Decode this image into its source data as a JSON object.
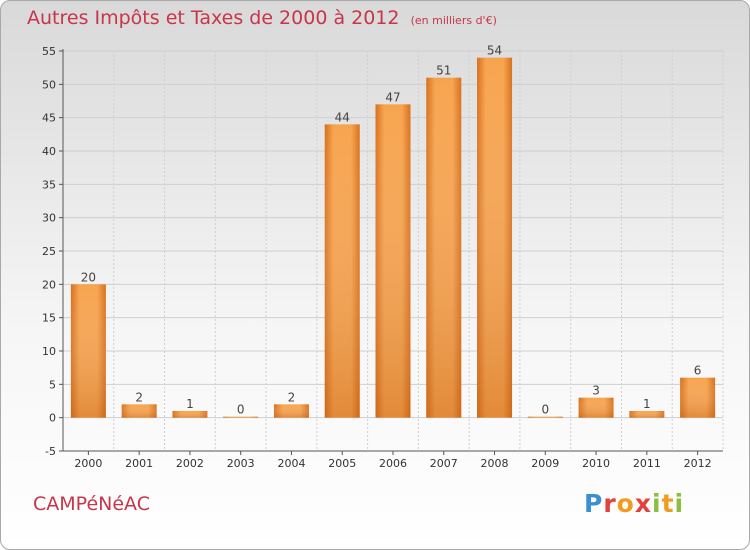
{
  "header": {
    "title": "Autres Impôts et Taxes de 2000 à 2012",
    "subtitle": "(en milliers d'€)"
  },
  "footer": {
    "commune": "CAMPéNéAC",
    "logo": "Proxiti"
  },
  "colors": {
    "title": "#c8354a",
    "bar_light": "#f7a44f",
    "bar_dark": "#d8701b",
    "grid": "#cfcfcf"
  },
  "chart_data": {
    "type": "bar",
    "title": "Autres Impôts et Taxes de 2000 à 2012",
    "subtitle": "(en milliers d'€)",
    "xlabel": "",
    "ylabel": "",
    "categories": [
      "2000",
      "2001",
      "2002",
      "2003",
      "2004",
      "2005",
      "2006",
      "2007",
      "2008",
      "2009",
      "2010",
      "2011",
      "2012"
    ],
    "values": [
      20,
      2,
      1,
      0,
      2,
      44,
      47,
      51,
      54,
      0,
      3,
      1,
      6
    ],
    "ylim": [
      -5,
      55
    ],
    "yticks": [
      -5,
      0,
      5,
      10,
      15,
      20,
      25,
      30,
      35,
      40,
      45,
      50,
      55
    ],
    "grid": true,
    "data_labels": true
  }
}
